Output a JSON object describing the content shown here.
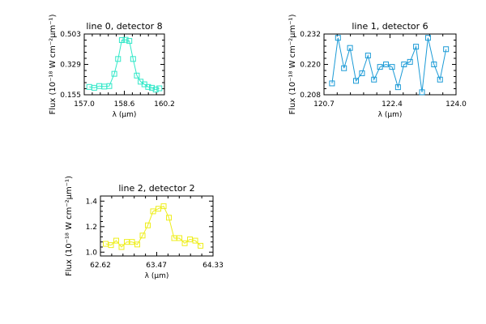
{
  "chart_data": [
    {
      "type": "line",
      "title": "line 0, detector 8",
      "xlabel": "λ (μm)",
      "ylabel": "Flux (10⁻¹⁸ W cm⁻²μm⁻¹)",
      "xlim": [
        157.0,
        160.2
      ],
      "ylim": [
        0.155,
        0.503
      ],
      "xticks": [
        "157.0",
        "158.6",
        "160.2"
      ],
      "yticks": [
        "0.155",
        "0.329",
        "0.503"
      ],
      "color": "#30e8c8",
      "marker": "square",
      "grid": false,
      "x": [
        157.2,
        157.4,
        157.6,
        157.8,
        158.0,
        158.2,
        158.35,
        158.5,
        158.65,
        158.8,
        158.95,
        159.1,
        159.25,
        159.4,
        159.55,
        159.7,
        159.85,
        160.0
      ],
      "y": [
        0.2,
        0.195,
        0.205,
        0.202,
        0.205,
        0.275,
        0.36,
        0.468,
        0.47,
        0.463,
        0.36,
        0.265,
        0.23,
        0.215,
        0.2,
        0.195,
        0.185,
        0.192
      ]
    },
    {
      "type": "line",
      "title": "line 1, detector 6",
      "xlabel": "λ (μm)",
      "ylabel": "Flux (10⁻¹⁸ W cm⁻²μm⁻¹)",
      "xlim": [
        120.7,
        124.0
      ],
      "ylim": [
        0.208,
        0.232
      ],
      "xticks": [
        "120.7",
        "122.4",
        "124.0"
      ],
      "yticks": [
        "0.208",
        "0.220",
        "0.232"
      ],
      "color": "#1a9ad6",
      "marker": "square",
      "grid": false,
      "x": [
        120.9,
        121.05,
        121.2,
        121.35,
        121.5,
        121.65,
        121.8,
        121.95,
        122.1,
        122.25,
        122.4,
        122.55,
        122.7,
        122.85,
        123.0,
        123.15,
        123.3,
        123.45,
        123.6,
        123.75
      ],
      "y": [
        0.2125,
        0.2305,
        0.2185,
        0.2265,
        0.2135,
        0.2165,
        0.2235,
        0.214,
        0.219,
        0.22,
        0.219,
        0.211,
        0.22,
        0.221,
        0.227,
        0.209,
        0.2305,
        0.22,
        0.214,
        0.226
      ]
    },
    {
      "type": "line",
      "title": "line 2, detector 2",
      "xlabel": "λ (μm)",
      "ylabel": "Flux (10⁻¹⁸ W cm⁻²μm⁻¹)",
      "xlim": [
        62.62,
        64.33
      ],
      "ylim": [
        0.97,
        1.44
      ],
      "xticks": [
        "62.62",
        "63.47",
        "64.33"
      ],
      "yticks": [
        "1.0",
        "1.2",
        "1.4"
      ],
      "color": "#eeee1a",
      "marker": "square",
      "grid": false,
      "x": [
        62.7,
        62.78,
        62.86,
        62.94,
        63.02,
        63.1,
        63.18,
        63.26,
        63.34,
        63.42,
        63.5,
        63.58,
        63.66,
        63.74,
        63.82,
        63.9,
        63.98,
        64.06,
        64.14
      ],
      "y": [
        1.065,
        1.055,
        1.09,
        1.04,
        1.08,
        1.08,
        1.06,
        1.13,
        1.21,
        1.32,
        1.34,
        1.36,
        1.27,
        1.11,
        1.11,
        1.07,
        1.1,
        1.09,
        1.05
      ]
    }
  ]
}
